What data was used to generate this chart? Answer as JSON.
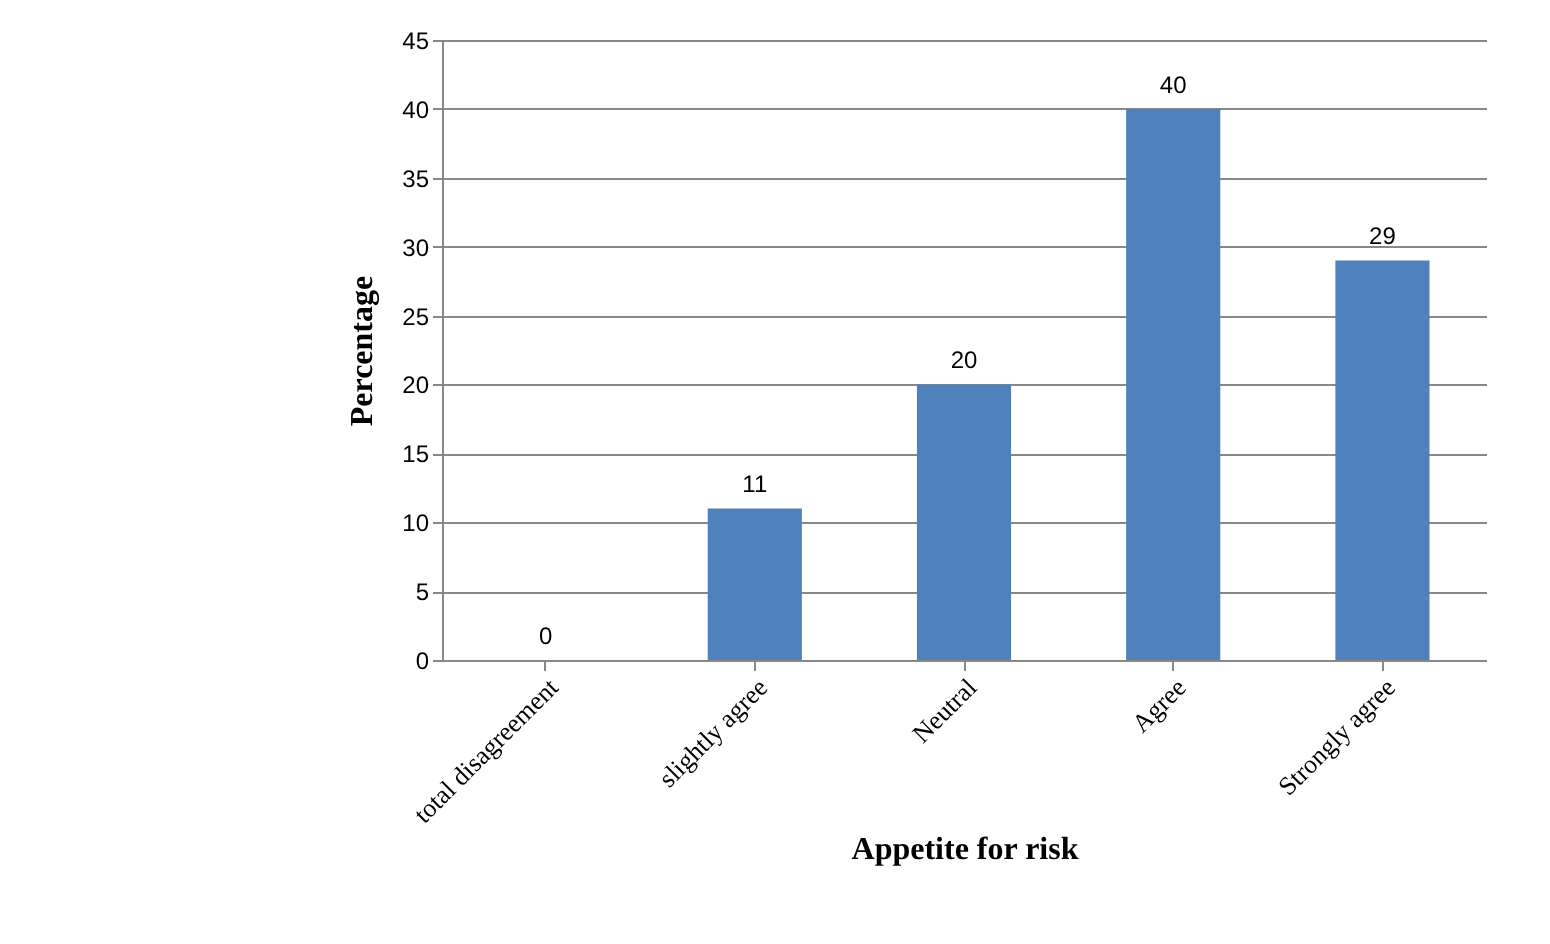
{
  "chart_data": {
    "type": "bar",
    "xlabel": "Appetite for risk",
    "ylabel": "Percentage",
    "categories": [
      "total disagreement",
      "slightly agree",
      "Neutral",
      "Agree",
      "Strongly agree"
    ],
    "values": [
      0,
      11,
      20,
      40,
      29
    ],
    "color": "#4f81bd",
    "ylim": [
      0,
      45
    ],
    "yticks": [
      0,
      5,
      10,
      15,
      20,
      25,
      30,
      35,
      40,
      45
    ],
    "grid": "y",
    "data_labels": true
  }
}
